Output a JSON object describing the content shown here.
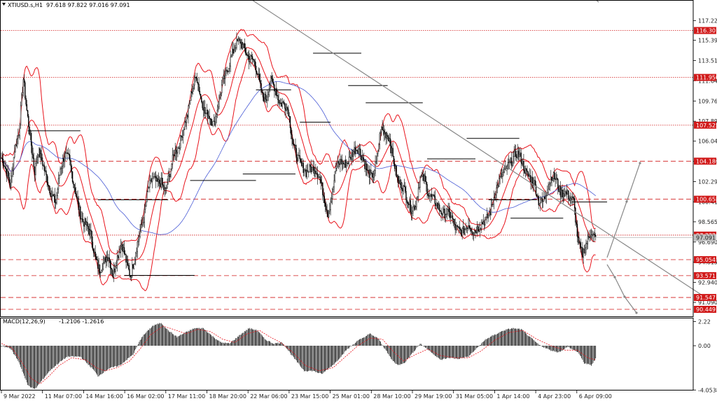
{
  "chart_data": [
    {
      "type": "candlestick",
      "title": "XTIUSD.s,H1  97.618 97.822 97.016 97.091",
      "symbol": "XTIUSD.s,H1",
      "ohlc_header": "97.618 97.822 97.016 97.091",
      "ylim": [
        89.8,
        119.0
      ],
      "y_ticks": [
        117.225,
        115.39,
        113.515,
        111.64,
        109.765,
        107.89,
        106.04,
        104.165,
        102.29,
        100.415,
        98.565,
        96.69,
        94.815,
        92.94,
        91.09
      ],
      "y_tick_labels": [
        "117.225",
        "115.390",
        "113.515",
        "111.640",
        "109.765",
        "107.890",
        "106.040",
        "104.165",
        "102.290",
        "100.415",
        "98.565",
        "96.690",
        "94.815",
        "92.940",
        "91.090"
      ],
      "x_tick_labels": [
        "9 Mar 2022",
        "11 Mar 07:00",
        "14 Mar 16:00",
        "16 Mar 02:00",
        "17 Mar 11:00",
        "18 Mar 20:00",
        "22 Mar 06:00",
        "23 Mar 15:00",
        "25 Mar 01:00",
        "28 Mar 10:00",
        "29 Mar 19:00",
        "31 Mar 05:00",
        "1 Apr 14:00",
        "4 Apr 23:00",
        "6 Apr 09:00"
      ],
      "levels": [
        {
          "label": "116.301",
          "value": 116.301,
          "style": "dotted"
        },
        {
          "label": "111.950",
          "value": 111.95,
          "style": "dotted"
        },
        {
          "label": "107.525",
          "value": 107.525,
          "style": "dotted"
        },
        {
          "label": "104.186",
          "value": 104.186,
          "style": "dashed"
        },
        {
          "label": "100.658",
          "value": 100.658,
          "style": "dashed"
        },
        {
          "label": "97.332",
          "value": 97.332,
          "style": "dotted"
        },
        {
          "label": "95.054",
          "value": 95.054,
          "style": "dashed"
        },
        {
          "label": "93.571",
          "value": 93.571,
          "style": "dashed"
        },
        {
          "label": "91.547",
          "value": 91.547,
          "style": "dashed"
        },
        {
          "label": "90.449",
          "value": 90.449,
          "style": "dashed"
        }
      ],
      "current_price": {
        "label": "97.091",
        "value": 97.091
      },
      "close_anchors": [
        [
          0,
          104.5
        ],
        [
          5,
          103.2
        ],
        [
          10,
          102.0
        ],
        [
          15,
          105.5
        ],
        [
          20,
          106.8
        ],
        [
          25,
          111.6
        ],
        [
          28,
          109.5
        ],
        [
          33,
          106.6
        ],
        [
          38,
          103.2
        ],
        [
          42,
          104.9
        ],
        [
          47,
          104.0
        ],
        [
          52,
          102.8
        ],
        [
          57,
          101.0
        ],
        [
          62,
          100.1
        ],
        [
          67,
          103.6
        ],
        [
          72,
          105.0
        ],
        [
          77,
          104.3
        ],
        [
          82,
          102.0
        ],
        [
          87,
          100.4
        ],
        [
          92,
          98.9
        ],
        [
          97,
          98.0
        ],
        [
          102,
          97.2
        ],
        [
          107,
          95.4
        ],
        [
          112,
          94.2
        ],
        [
          117,
          94.6
        ],
        [
          122,
          95.4
        ],
        [
          127,
          93.9
        ],
        [
          132,
          95.3
        ],
        [
          137,
          96.3
        ],
        [
          142,
          95.0
        ],
        [
          147,
          93.8
        ],
        [
          152,
          95.3
        ],
        [
          157,
          97.1
        ],
        [
          162,
          99.0
        ],
        [
          167,
          101.8
        ],
        [
          172,
          102.4
        ],
        [
          177,
          102.0
        ],
        [
          182,
          102.4
        ],
        [
          187,
          101.5
        ],
        [
          192,
          102.9
        ],
        [
          197,
          104.9
        ],
        [
          202,
          105.8
        ],
        [
          207,
          107.2
        ],
        [
          212,
          108.2
        ],
        [
          217,
          110.8
        ],
        [
          222,
          112.5
        ],
        [
          227,
          110.0
        ],
        [
          232,
          108.4
        ],
        [
          237,
          108.5
        ],
        [
          242,
          107.8
        ],
        [
          247,
          109.3
        ],
        [
          252,
          111.3
        ],
        [
          257,
          112.8
        ],
        [
          262,
          114.1
        ],
        [
          267,
          114.8
        ],
        [
          272,
          115.2
        ],
        [
          277,
          114.8
        ],
        [
          282,
          113.8
        ],
        [
          287,
          113.3
        ],
        [
          292,
          112.3
        ],
        [
          297,
          110.5
        ],
        [
          302,
          110.0
        ],
        [
          307,
          111.4
        ],
        [
          312,
          111.0
        ],
        [
          317,
          109.8
        ],
        [
          322,
          109.4
        ],
        [
          327,
          108.6
        ],
        [
          332,
          106.0
        ],
        [
          337,
          104.8
        ],
        [
          342,
          103.5
        ],
        [
          347,
          103.0
        ],
        [
          352,
          103.8
        ],
        [
          357,
          103.6
        ],
        [
          362,
          102.5
        ],
        [
          367,
          101.0
        ],
        [
          372,
          99.6
        ],
        [
          377,
          101.3
        ],
        [
          382,
          103.6
        ],
        [
          387,
          104.2
        ],
        [
          392,
          104.2
        ],
        [
          397,
          104.3
        ],
        [
          402,
          105.0
        ],
        [
          407,
          105.5
        ],
        [
          412,
          104.6
        ],
        [
          417,
          103.0
        ],
        [
          422,
          102.5
        ],
        [
          427,
          104.2
        ],
        [
          432,
          107.3
        ],
        [
          437,
          106.5
        ],
        [
          442,
          106.2
        ],
        [
          447,
          104.4
        ],
        [
          452,
          102.3
        ],
        [
          457,
          101.6
        ],
        [
          462,
          100.8
        ],
        [
          467,
          100.0
        ],
        [
          472,
          100.1
        ],
        [
          477,
          102.4
        ],
        [
          482,
          102.6
        ],
        [
          487,
          101.3
        ],
        [
          492,
          100.5
        ],
        [
          497,
          99.8
        ],
        [
          502,
          99.6
        ],
        [
          507,
          99.6
        ],
        [
          512,
          98.9
        ],
        [
          517,
          97.9
        ],
        [
          522,
          98.0
        ],
        [
          527,
          97.8
        ],
        [
          532,
          98.1
        ],
        [
          537,
          97.7
        ],
        [
          542,
          98.2
        ],
        [
          547,
          98.4
        ],
        [
          552,
          98.4
        ],
        [
          557,
          99.6
        ],
        [
          562,
          101.4
        ],
        [
          567,
          102.2
        ],
        [
          572,
          102.9
        ],
        [
          577,
          103.9
        ],
        [
          582,
          104.6
        ],
        [
          587,
          104.7
        ],
        [
          592,
          104.3
        ],
        [
          597,
          103.4
        ],
        [
          602,
          102.8
        ],
        [
          607,
          101.9
        ],
        [
          612,
          100.4
        ],
        [
          617,
          100.7
        ],
        [
          622,
          101.6
        ],
        [
          627,
          102.6
        ],
        [
          632,
          102.5
        ],
        [
          637,
          101.5
        ],
        [
          642,
          101.2
        ],
        [
          647,
          100.6
        ],
        [
          652,
          100.6
        ],
        [
          657,
          96.9
        ],
        [
          662,
          95.4
        ],
        [
          667,
          96.5
        ],
        [
          672,
          97.9
        ],
        [
          677,
          97.1
        ]
      ],
      "bars_count": 678,
      "series": [
        {
          "name": "Bollinger upper",
          "type": "line"
        },
        {
          "name": "Bollinger middle",
          "type": "line"
        },
        {
          "name": "Bollinger lower",
          "type": "line"
        },
        {
          "name": "Moving average",
          "type": "line"
        }
      ],
      "colors": {
        "candle": "#000000",
        "bollinger": "#e8141c",
        "ma": "#4a5cd6",
        "level": "#d11a1a",
        "trendline": "#888888",
        "current_tag": "#c0c0c0"
      }
    },
    {
      "type": "bar",
      "title": "MACD(12,26,9) -1.2106 -1.2616",
      "indicator": "MACD(12,26,9)",
      "values_header": "-1.2106 -1.2616",
      "ylim": [
        -4.1,
        2.5
      ],
      "y_ticks": [
        2.22,
        0.0,
        -4.0538
      ],
      "y_tick_labels": [
        "2.22",
        "0.00",
        "-4.0538"
      ],
      "macd_anchors": [
        [
          0,
          -0.05
        ],
        [
          10,
          -0.2
        ],
        [
          20,
          -1.5
        ],
        [
          30,
          -3.6
        ],
        [
          38,
          -4.0
        ],
        [
          46,
          -3.2
        ],
        [
          55,
          -2.3
        ],
        [
          65,
          -1.6
        ],
        [
          75,
          -1.0
        ],
        [
          90,
          -1.0
        ],
        [
          100,
          -1.8
        ],
        [
          105,
          -2.2
        ],
        [
          110,
          -2.8
        ],
        [
          122,
          -2.1
        ],
        [
          135,
          -1.8
        ],
        [
          150,
          -0.8
        ],
        [
          160,
          0.8
        ],
        [
          172,
          1.8
        ],
        [
          182,
          2.1
        ],
        [
          190,
          1.4
        ],
        [
          200,
          0.8
        ],
        [
          212,
          1.3
        ],
        [
          220,
          1.6
        ],
        [
          230,
          1.6
        ],
        [
          240,
          0.9
        ],
        [
          250,
          0.3
        ],
        [
          260,
          0.2
        ],
        [
          272,
          1.0
        ],
        [
          282,
          1.6
        ],
        [
          292,
          1.4
        ],
        [
          300,
          0.6
        ],
        [
          310,
          0.2
        ],
        [
          320,
          0.3
        ],
        [
          335,
          -1.3
        ],
        [
          345,
          -2.3
        ],
        [
          355,
          -2.3
        ],
        [
          365,
          -2.6
        ],
        [
          380,
          -1.6
        ],
        [
          393,
          -0.4
        ],
        [
          405,
          0.4
        ],
        [
          420,
          1.1
        ],
        [
          430,
          0.6
        ],
        [
          437,
          -0.3
        ],
        [
          445,
          -1.3
        ],
        [
          452,
          -1.8
        ],
        [
          460,
          -1.5
        ],
        [
          470,
          -0.5
        ],
        [
          477,
          0.2
        ],
        [
          490,
          -0.6
        ],
        [
          500,
          -1.3
        ],
        [
          510,
          -1.1
        ],
        [
          520,
          -1.2
        ],
        [
          532,
          -1.0
        ],
        [
          542,
          -0.2
        ],
        [
          552,
          0.6
        ],
        [
          562,
          1.0
        ],
        [
          572,
          1.4
        ],
        [
          582,
          1.6
        ],
        [
          592,
          1.5
        ],
        [
          602,
          0.8
        ],
        [
          612,
          0.1
        ],
        [
          625,
          -0.4
        ],
        [
          635,
          -0.6
        ],
        [
          645,
          -0.1
        ],
        [
          657,
          -0.6
        ],
        [
          664,
          -1.6
        ],
        [
          672,
          -1.8
        ],
        [
          677,
          -1.2
        ]
      ],
      "signal_anchors": [
        [
          0,
          0.2
        ],
        [
          12,
          -0.2
        ],
        [
          24,
          -1.6
        ],
        [
          34,
          -3.0
        ],
        [
          44,
          -3.5
        ],
        [
          54,
          -2.8
        ],
        [
          66,
          -1.8
        ],
        [
          80,
          -1.1
        ],
        [
          96,
          -1.3
        ],
        [
          108,
          -2.0
        ],
        [
          118,
          -2.3
        ],
        [
          132,
          -2.0
        ],
        [
          146,
          -1.4
        ],
        [
          158,
          -0.3
        ],
        [
          170,
          1.0
        ],
        [
          184,
          1.8
        ],
        [
          196,
          1.5
        ],
        [
          210,
          1.1
        ],
        [
          224,
          1.5
        ],
        [
          238,
          1.3
        ],
        [
          252,
          0.6
        ],
        [
          266,
          0.3
        ],
        [
          280,
          1.1
        ],
        [
          294,
          1.4
        ],
        [
          306,
          0.8
        ],
        [
          318,
          0.3
        ],
        [
          332,
          -0.6
        ],
        [
          346,
          -1.8
        ],
        [
          362,
          -2.3
        ],
        [
          378,
          -2.0
        ],
        [
          392,
          -1.0
        ],
        [
          406,
          0.0
        ],
        [
          420,
          0.7
        ],
        [
          434,
          0.6
        ],
        [
          446,
          -0.5
        ],
        [
          458,
          -1.4
        ],
        [
          472,
          -0.8
        ],
        [
          486,
          -0.3
        ],
        [
          500,
          -0.9
        ],
        [
          516,
          -1.1
        ],
        [
          532,
          -1.1
        ],
        [
          546,
          -0.5
        ],
        [
          562,
          0.5
        ],
        [
          578,
          1.2
        ],
        [
          594,
          1.4
        ],
        [
          610,
          0.6
        ],
        [
          626,
          0.0
        ],
        [
          642,
          -0.4
        ],
        [
          656,
          -0.4
        ],
        [
          668,
          -1.1
        ],
        [
          677,
          -1.3
        ]
      ],
      "colors": {
        "histogram": "#000000",
        "signal": "#e8141c"
      }
    }
  ]
}
